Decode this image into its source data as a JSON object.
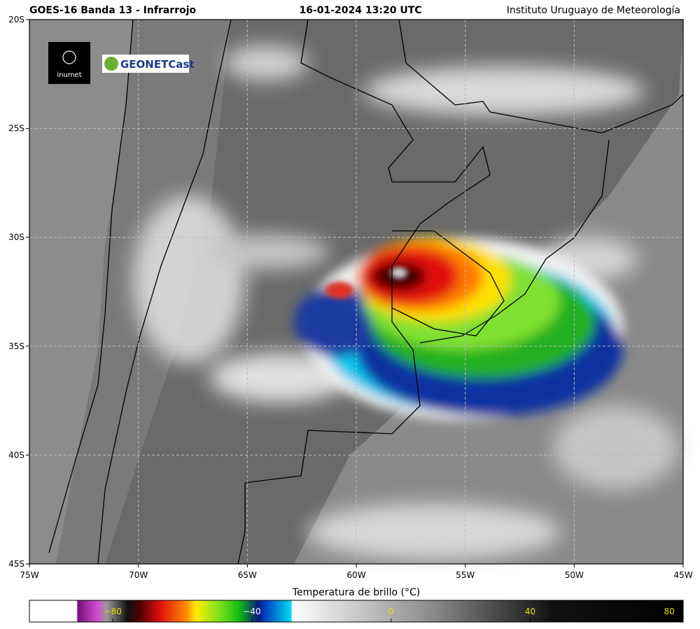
{
  "header": {
    "title": "GOES-16 Banda 13 - Infrarrojo",
    "datetime": "16-01-2024 13:20 UTC",
    "source": "Instituto Uruguayo de Meteorología"
  },
  "logos": {
    "inumet": "inumet",
    "geonetcast": "GEONETCast"
  },
  "map": {
    "xlim": [
      -75,
      -45
    ],
    "ylim": [
      -45,
      -20
    ],
    "xticks": [
      {
        "value": -75,
        "label": "75W"
      },
      {
        "value": -70,
        "label": "70W"
      },
      {
        "value": -65,
        "label": "65W"
      },
      {
        "value": -60,
        "label": "60W"
      },
      {
        "value": -55,
        "label": "55W"
      },
      {
        "value": -50,
        "label": "50W"
      },
      {
        "value": -45,
        "label": "45W"
      }
    ],
    "yticks": [
      {
        "value": -20,
        "label": "20S"
      },
      {
        "value": -25,
        "label": "25S"
      },
      {
        "value": -30,
        "label": "30S"
      },
      {
        "value": -35,
        "label": "35S"
      },
      {
        "value": -40,
        "label": "40S"
      },
      {
        "value": -45,
        "label": "45S"
      }
    ],
    "grid": true
  },
  "colorbar": {
    "label": "Temperatura de brillo (°C)",
    "clim": [
      -104,
      84
    ],
    "ticks": [
      {
        "value": -80,
        "label": "−80"
      },
      {
        "value": -40,
        "label": "−40"
      },
      0,
      40,
      80
    ]
  }
}
